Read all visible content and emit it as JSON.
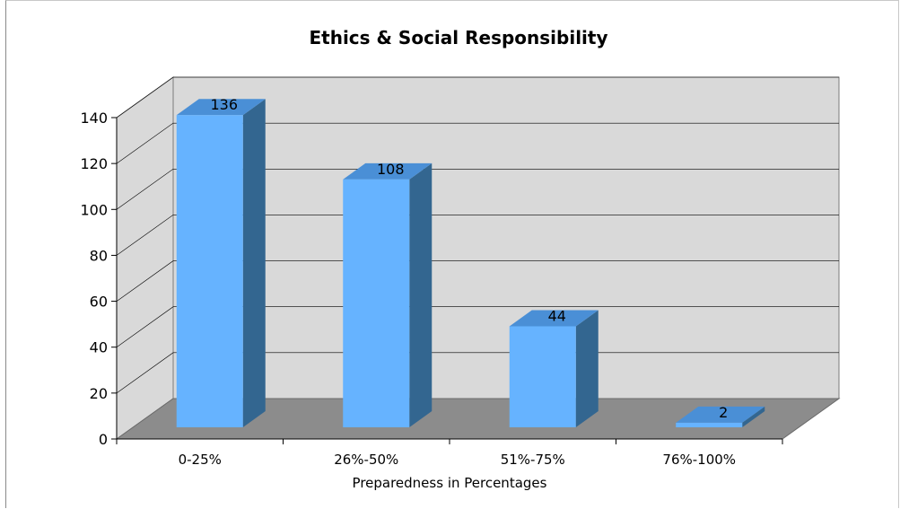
{
  "chart_data": {
    "type": "bar",
    "title": "Ethics & Social Responsibility",
    "xlabel": "Preparedness in Percentages",
    "ylabel": "",
    "categories": [
      "0-25%",
      "26%-50%",
      "51%-75%",
      "76%-100%"
    ],
    "values": [
      136,
      108,
      44,
      2
    ],
    "data_labels": [
      "136",
      "108",
      "44",
      "2"
    ],
    "ylim": [
      0,
      140
    ],
    "yticks": [
      "0",
      "20",
      "40",
      "60",
      "80",
      "100",
      "120",
      "140"
    ],
    "grid": true,
    "legend": "none",
    "style": "3d",
    "colors": {
      "bar_front": "#66b3ff",
      "bar_top": "#4a8fd6",
      "bar_side": "#336690",
      "back_wall": "#d9d9d9",
      "side_wall": "#d9d9d9",
      "floor": "#8c8c8c",
      "gridline": "#000000"
    }
  }
}
